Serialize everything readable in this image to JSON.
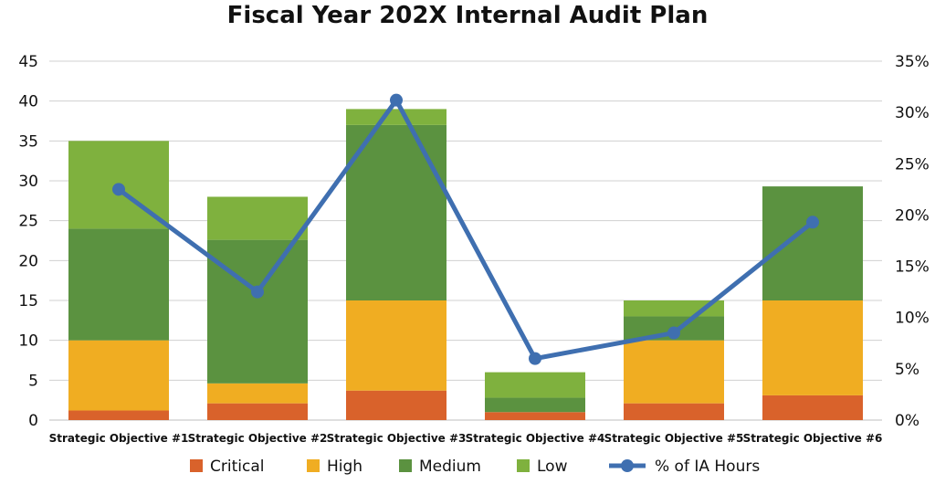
{
  "chart_data": {
    "type": "bar",
    "stacked": true,
    "title": "Fiscal Year 202X Internal Audit Plan",
    "categories": [
      "Strategic Objective #1",
      "Strategic Objective #2",
      "Strategic Objective #3",
      "Strategic Objective #4",
      "Strategic Objective #5",
      "Strategic Objective #6"
    ],
    "series": [
      {
        "name": "Critical",
        "color": "#D9622B",
        "values": [
          1.2,
          2.1,
          3.7,
          1.0,
          2.1,
          3.1
        ]
      },
      {
        "name": "High",
        "color": "#F0AD22",
        "values": [
          8.8,
          2.5,
          11.3,
          0,
          7.9,
          11.9
        ]
      },
      {
        "name": "Medium",
        "color": "#5B9240",
        "values": [
          14.0,
          18.0,
          22.0,
          1.8,
          3.0,
          14.3
        ]
      },
      {
        "name": "Low",
        "color": "#7FB13E",
        "values": [
          11.0,
          5.4,
          2.0,
          3.2,
          2.0,
          0
        ]
      }
    ],
    "line": {
      "name": "% of IA Hours",
      "color": "#3F6FB0",
      "values": [
        22.5,
        12.5,
        31.2,
        6.0,
        8.5,
        19.3
      ],
      "axis": "right"
    },
    "ylim": [
      0,
      45
    ],
    "yticks": [
      "0",
      "5",
      "10",
      "15",
      "20",
      "25",
      "30",
      "35",
      "40",
      "45"
    ],
    "y2lim": [
      0,
      35
    ],
    "y2ticks": [
      "0%",
      "5%",
      "10%",
      "15%",
      "20%",
      "25%",
      "30%",
      "35%"
    ],
    "grid": true,
    "legend_position": "bottom"
  }
}
